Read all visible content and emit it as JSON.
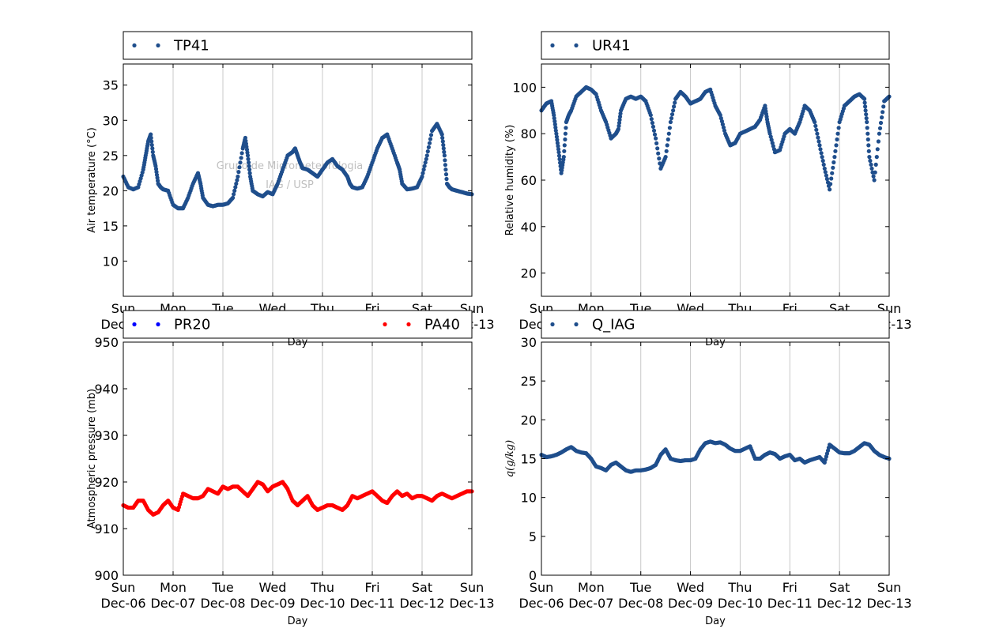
{
  "watermark": {
    "line1": "Grupo de Micrometeorologia",
    "line2": "IAG / USP"
  },
  "chart_data": [
    {
      "type": "scatter",
      "ylabel": "Air temperature (°C)",
      "xlabel": "Day",
      "ylim": [
        5,
        38
      ],
      "yticks": [
        10,
        15,
        20,
        25,
        30,
        35
      ],
      "xlim": [
        0,
        7
      ],
      "xtick_days": [
        "Sun",
        "Mon",
        "Tue",
        "Wed",
        "Thu",
        "Fri",
        "Sat",
        "Sun"
      ],
      "xtick_dates": [
        "Dec-06",
        "Dec-07",
        "Dec-08",
        "Dec-09",
        "Dec-10",
        "Dec-11",
        "Dec-12",
        "Dec-13"
      ],
      "grid": "vertical",
      "legend_placement": "top",
      "watermark": true,
      "series": [
        {
          "name": "TP41",
          "color": "#1f4e8c",
          "x": [
            0,
            0.1,
            0.2,
            0.3,
            0.4,
            0.45,
            0.5,
            0.55,
            0.6,
            0.65,
            0.7,
            0.75,
            0.8,
            0.9,
            1.0,
            1.1,
            1.2,
            1.3,
            1.4,
            1.5,
            1.55,
            1.6,
            1.7,
            1.8,
            1.9,
            2.0,
            2.1,
            2.2,
            2.3,
            2.4,
            2.45,
            2.5,
            2.55,
            2.6,
            2.7,
            2.8,
            2.9,
            3.0,
            3.1,
            3.2,
            3.3,
            3.4,
            3.45,
            3.5,
            3.55,
            3.6,
            3.7,
            3.8,
            3.9,
            4.0,
            4.1,
            4.2,
            4.3,
            4.4,
            4.5,
            4.55,
            4.6,
            4.7,
            4.8,
            4.9,
            5.0,
            5.1,
            5.2,
            5.3,
            5.4,
            5.5,
            5.55,
            5.6,
            5.7,
            5.8,
            5.9,
            6.0,
            6.1,
            6.2,
            6.3,
            6.4,
            6.45,
            6.5,
            6.55,
            6.6,
            6.7,
            6.8,
            6.9,
            7.0
          ],
          "y": [
            22,
            20.5,
            20.2,
            20.5,
            23,
            25,
            27,
            28,
            25,
            23.5,
            21,
            20.5,
            20.2,
            20,
            18,
            17.5,
            17.5,
            19,
            21,
            22.5,
            21,
            19,
            18,
            17.8,
            18,
            18,
            18.2,
            19,
            22,
            26,
            27.5,
            25,
            22,
            20,
            19.5,
            19.2,
            19.8,
            19.5,
            21,
            23,
            25,
            25.5,
            26,
            25,
            24,
            23.2,
            23,
            22.5,
            22,
            23,
            24,
            24.5,
            23.5,
            23,
            22,
            21,
            20.5,
            20.3,
            20.5,
            22,
            24,
            26,
            27.5,
            28,
            26,
            24,
            23,
            21,
            20.2,
            20.3,
            20.5,
            22,
            25,
            28.5,
            29.5,
            28,
            25,
            21,
            20.5,
            20.2,
            20,
            19.8,
            19.6,
            19.5
          ]
        }
      ]
    },
    {
      "type": "scatter",
      "ylabel": "Relative humidity (%)",
      "xlabel": "Day",
      "ylim": [
        10,
        110
      ],
      "yticks": [
        20,
        40,
        60,
        80,
        100
      ],
      "xlim": [
        0,
        7
      ],
      "xtick_days": [
        "Sun",
        "Mon",
        "Tue",
        "Wed",
        "Thu",
        "Fri",
        "Sat",
        "Sun"
      ],
      "xtick_dates": [
        "Dec-06",
        "Dec-07",
        "Dec-08",
        "Dec-09",
        "Dec-10",
        "Dec-11",
        "Dec-12",
        "Dec-13"
      ],
      "grid": "vertical",
      "legend_placement": "top",
      "series": [
        {
          "name": "UR41",
          "color": "#1f4e8c",
          "x": [
            0,
            0.1,
            0.2,
            0.25,
            0.3,
            0.35,
            0.4,
            0.45,
            0.5,
            0.55,
            0.6,
            0.7,
            0.8,
            0.9,
            1.0,
            1.1,
            1.2,
            1.3,
            1.4,
            1.5,
            1.55,
            1.6,
            1.7,
            1.8,
            1.9,
            2.0,
            2.1,
            2.2,
            2.3,
            2.4,
            2.5,
            2.6,
            2.7,
            2.8,
            2.9,
            3.0,
            3.1,
            3.2,
            3.3,
            3.4,
            3.5,
            3.6,
            3.7,
            3.8,
            3.9,
            4.0,
            4.1,
            4.2,
            4.3,
            4.4,
            4.5,
            4.55,
            4.6,
            4.7,
            4.8,
            4.9,
            5.0,
            5.1,
            5.2,
            5.3,
            5.4,
            5.5,
            5.6,
            5.7,
            5.8,
            5.9,
            6.0,
            6.1,
            6.2,
            6.3,
            6.4,
            6.5,
            6.55,
            6.6,
            6.7,
            6.8,
            6.9,
            7.0
          ],
          "y": [
            90,
            93,
            94,
            88,
            80,
            72,
            63,
            70,
            85,
            88,
            90,
            96,
            98,
            100,
            99,
            97,
            90,
            85,
            78,
            80,
            82,
            90,
            95,
            96,
            95,
            96,
            94,
            88,
            78,
            65,
            70,
            85,
            95,
            98,
            96,
            93,
            94,
            95,
            98,
            99,
            92,
            88,
            80,
            75,
            76,
            80,
            81,
            82,
            83,
            86,
            92,
            85,
            80,
            72,
            73,
            80,
            82,
            80,
            85,
            92,
            90,
            85,
            75,
            65,
            56,
            70,
            85,
            92,
            94,
            96,
            97,
            95,
            85,
            70,
            60,
            80,
            94,
            96
          ]
        }
      ]
    },
    {
      "type": "scatter",
      "ylabel": "Atmospheric pressure (mb)",
      "xlabel": "Day",
      "ylim": [
        900,
        950
      ],
      "yticks": [
        900,
        910,
        920,
        930,
        940,
        950
      ],
      "xlim": [
        0,
        7
      ],
      "xtick_days": [
        "Sun",
        "Mon",
        "Tue",
        "Wed",
        "Thu",
        "Fri",
        "Sat",
        "Sun"
      ],
      "xtick_dates": [
        "Dec-06",
        "Dec-07",
        "Dec-08",
        "Dec-09",
        "Dec-10",
        "Dec-11",
        "Dec-12",
        "Dec-13"
      ],
      "grid": "vertical",
      "legend_placement": "top",
      "series": [
        {
          "name": "PR20",
          "color": "#0000ff",
          "x": [],
          "y": []
        },
        {
          "name": "PA40",
          "color": "#ff0000",
          "x": [
            0,
            0.1,
            0.2,
            0.3,
            0.4,
            0.5,
            0.6,
            0.7,
            0.8,
            0.9,
            1.0,
            1.1,
            1.2,
            1.3,
            1.4,
            1.5,
            1.6,
            1.7,
            1.8,
            1.9,
            2.0,
            2.1,
            2.2,
            2.3,
            2.4,
            2.5,
            2.6,
            2.7,
            2.8,
            2.9,
            3.0,
            3.1,
            3.2,
            3.3,
            3.4,
            3.5,
            3.6,
            3.7,
            3.8,
            3.9,
            4.0,
            4.1,
            4.2,
            4.3,
            4.4,
            4.5,
            4.6,
            4.7,
            4.8,
            4.9,
            5.0,
            5.1,
            5.2,
            5.3,
            5.4,
            5.5,
            5.6,
            5.7,
            5.8,
            5.9,
            6.0,
            6.1,
            6.2,
            6.3,
            6.4,
            6.5,
            6.6,
            6.7,
            6.8,
            6.9,
            7.0
          ],
          "y": [
            915,
            914.5,
            914.5,
            916,
            916,
            914,
            913,
            913.5,
            915,
            916,
            914.5,
            914,
            917.5,
            917,
            916.5,
            916.5,
            917,
            918.5,
            918,
            917.5,
            919,
            918.5,
            919,
            919,
            918,
            917,
            918.5,
            920,
            919.5,
            918,
            919,
            919.5,
            920,
            918.5,
            916,
            915,
            916,
            917,
            915,
            914,
            914.5,
            915,
            915,
            914.5,
            914,
            915,
            917,
            916.5,
            917,
            917.5,
            918,
            917,
            916,
            915.5,
            917,
            918,
            917,
            917.5,
            916.5,
            917,
            917,
            916.5,
            916,
            917,
            917.5,
            917,
            916.5,
            917,
            917.5,
            918,
            918
          ]
        }
      ]
    },
    {
      "type": "scatter",
      "ylabel": "q(g/kg)",
      "xlabel": "Day",
      "ylim": [
        0,
        30
      ],
      "yticks": [
        0,
        5,
        10,
        15,
        20,
        25,
        30
      ],
      "xlim": [
        0,
        7
      ],
      "xtick_days": [
        "Sun",
        "Mon",
        "Tue",
        "Wed",
        "Thu",
        "Fri",
        "Sat",
        "Sun"
      ],
      "xtick_dates": [
        "Dec-06",
        "Dec-07",
        "Dec-08",
        "Dec-09",
        "Dec-10",
        "Dec-11",
        "Dec-12",
        "Dec-13"
      ],
      "grid": "vertical",
      "legend_placement": "top",
      "series": [
        {
          "name": "Q_IAG",
          "color": "#1f4e8c",
          "x": [
            0,
            0.1,
            0.2,
            0.3,
            0.4,
            0.5,
            0.6,
            0.7,
            0.8,
            0.9,
            1.0,
            1.1,
            1.2,
            1.3,
            1.4,
            1.5,
            1.6,
            1.7,
            1.8,
            1.9,
            2.0,
            2.1,
            2.2,
            2.3,
            2.4,
            2.5,
            2.6,
            2.7,
            2.8,
            2.9,
            3.0,
            3.1,
            3.2,
            3.3,
            3.4,
            3.5,
            3.6,
            3.7,
            3.8,
            3.9,
            4.0,
            4.1,
            4.2,
            4.3,
            4.4,
            4.5,
            4.6,
            4.7,
            4.8,
            4.9,
            5.0,
            5.1,
            5.2,
            5.3,
            5.4,
            5.5,
            5.6,
            5.7,
            5.8,
            5.9,
            6.0,
            6.1,
            6.2,
            6.3,
            6.4,
            6.5,
            6.6,
            6.7,
            6.8,
            6.9,
            7.0
          ],
          "y": [
            15.5,
            15.2,
            15.3,
            15.5,
            15.8,
            16.2,
            16.5,
            16,
            15.8,
            15.7,
            15,
            14,
            13.8,
            13.5,
            14.2,
            14.5,
            14,
            13.5,
            13.3,
            13.5,
            13.5,
            13.6,
            13.8,
            14.2,
            15.5,
            16.2,
            15,
            14.8,
            14.7,
            14.8,
            14.8,
            15,
            16.2,
            17,
            17.2,
            17,
            17.1,
            16.8,
            16.3,
            16,
            16,
            16.3,
            16.6,
            15,
            15,
            15.5,
            15.8,
            15.6,
            15,
            15.3,
            15.5,
            14.8,
            15,
            14.5,
            14.8,
            15,
            15.2,
            14.5,
            16.8,
            16.3,
            15.8,
            15.7,
            15.7,
            16,
            16.5,
            17,
            16.8,
            16,
            15.5,
            15.2,
            15
          ]
        }
      ]
    }
  ]
}
